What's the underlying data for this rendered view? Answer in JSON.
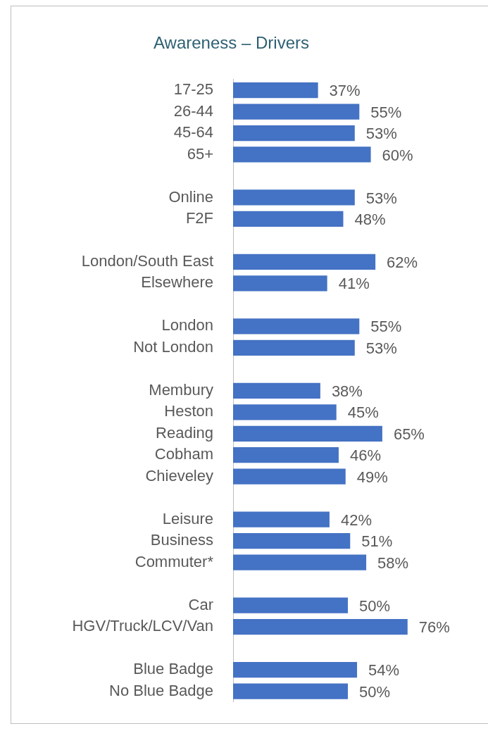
{
  "chart_data": {
    "type": "bar",
    "orientation": "horizontal",
    "title": "Awareness – Drivers",
    "categories": [
      "17-25",
      "26-44",
      "45-64",
      "65+",
      null,
      "Online",
      "F2F",
      null,
      "London/South East",
      "Elsewhere",
      null,
      "London",
      "Not London",
      null,
      "Membury",
      "Heston",
      "Reading",
      "Cobham",
      "Chieveley",
      null,
      "Leisure",
      "Business",
      "Commuter*",
      null,
      "Car",
      "HGV/Truck/LCV/Van",
      null,
      "Blue Badge",
      "No Blue Badge"
    ],
    "values": [
      37,
      55,
      53,
      60,
      null,
      53,
      48,
      null,
      62,
      41,
      null,
      55,
      53,
      null,
      38,
      45,
      65,
      46,
      49,
      null,
      42,
      51,
      58,
      null,
      50,
      76,
      null,
      54,
      50
    ],
    "value_labels": [
      "37%",
      "55%",
      "53%",
      "60%",
      null,
      "53%",
      "48%",
      null,
      "62%",
      "41%",
      null,
      "55%",
      "53%",
      null,
      "38%",
      "45%",
      "65%",
      "46%",
      "49%",
      null,
      "42%",
      "51%",
      "58%",
      null,
      "50%",
      "76%",
      null,
      "54%",
      "50%"
    ],
    "color": "#4472c4"
  }
}
